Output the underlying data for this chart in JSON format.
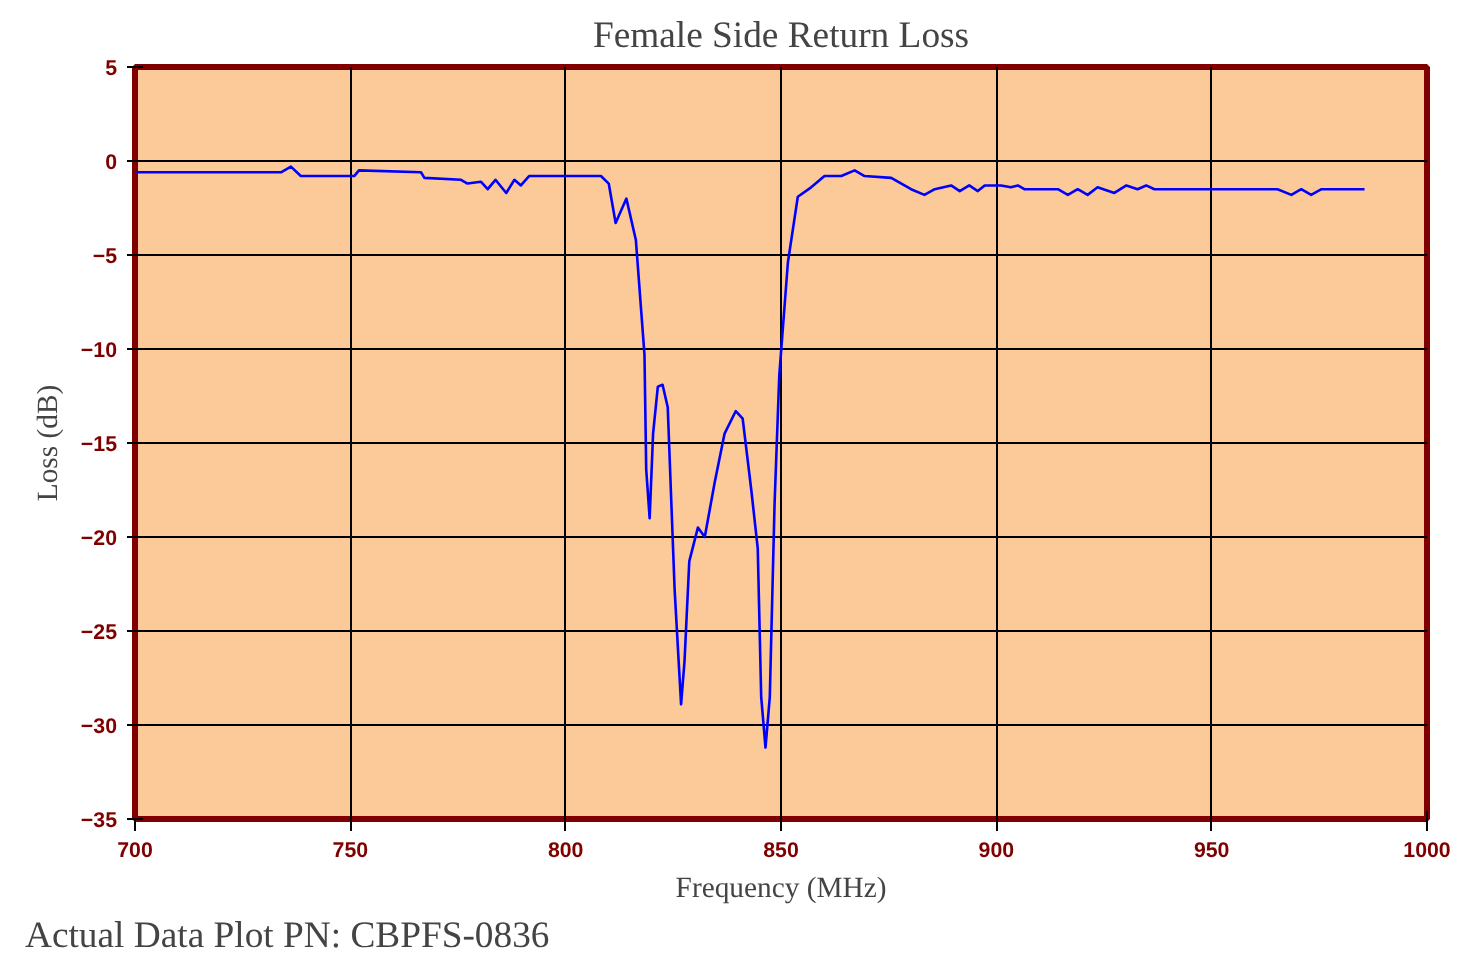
{
  "chart_data": {
    "type": "line",
    "title": "Female Side Return Loss",
    "xlabel": "Frequency (MHz)",
    "ylabel": "Loss (dB)",
    "annotations": [
      "Actual Data Plot PN: CBPFS-0836"
    ],
    "xlim": [
      700,
      1000
    ],
    "ylim": [
      -35,
      5
    ],
    "xticks": [
      700,
      750,
      800,
      850,
      900,
      950,
      1000
    ],
    "yticks": [
      5,
      0,
      -5,
      -10,
      -15,
      -20,
      -25,
      -30,
      -35
    ],
    "grid": true,
    "marker": "none",
    "line_style": "solid",
    "series": [
      {
        "color": "#0000ff",
        "x": [
          700,
          733.9,
          736.2,
          738.5,
          740,
          750.9,
          752,
          766.4,
          767.2,
          775.7,
          777.2,
          780.3,
          781.9,
          783.7,
          786.2,
          788.1,
          789.6,
          791.5,
          803.6,
          808.2,
          810,
          811.6,
          814.1,
          816.3,
          818.3,
          818.7,
          819.5,
          820.3,
          821.4,
          822.5,
          823.7,
          825.3,
          826.8,
          827.6,
          828.7,
          830.7,
          832.3,
          834.6,
          836.9,
          839.5,
          841.1,
          843.1,
          844.6,
          845.4,
          846.4,
          847.4,
          848.5,
          849.6,
          851.6,
          853.9,
          857,
          860.1,
          864,
          867.1,
          869.4,
          875.6,
          880.2,
          883.3,
          885.7,
          889.5,
          891.5,
          893.7,
          895.7,
          897.3,
          901.1,
          903.4,
          905,
          906.5,
          914.3,
          916.6,
          918.9,
          921.2,
          923.5,
          927.4,
          930.2,
          932.8,
          934.8,
          936.7,
          965.3,
          968.5,
          970.8,
          973.1,
          975.5,
          985.5
        ],
        "values": [
          -0.6,
          -0.6,
          -0.3,
          -0.8,
          -0.8,
          -0.8,
          -0.5,
          -0.6,
          -0.9,
          -1.0,
          -1.2,
          -1.1,
          -1.5,
          -1.0,
          -1.7,
          -1.0,
          -1.3,
          -0.8,
          -0.8,
          -0.8,
          -1.2,
          -3.3,
          -2.0,
          -4.2,
          -10.3,
          -16.4,
          -19.0,
          -14.5,
          -12.0,
          -11.9,
          -13.1,
          -22.8,
          -28.9,
          -26.6,
          -21.3,
          -19.5,
          -20.0,
          -17.1,
          -14.5,
          -13.3,
          -13.7,
          -17.5,
          -20.6,
          -28.5,
          -31.2,
          -28.5,
          -18.3,
          -11.4,
          -5.4,
          -1.9,
          -1.4,
          -0.8,
          -0.8,
          -0.5,
          -0.8,
          -0.9,
          -1.5,
          -1.8,
          -1.5,
          -1.3,
          -1.6,
          -1.3,
          -1.6,
          -1.3,
          -1.3,
          -1.4,
          -1.3,
          -1.5,
          -1.5,
          -1.8,
          -1.5,
          -1.8,
          -1.4,
          -1.7,
          -1.3,
          -1.5,
          -1.3,
          -1.5,
          -1.5,
          -1.8,
          -1.5,
          -1.8,
          -1.5,
          -1.5
        ]
      }
    ]
  }
}
